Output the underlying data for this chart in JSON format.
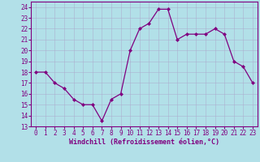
{
  "x": [
    0,
    1,
    2,
    3,
    4,
    5,
    6,
    7,
    8,
    9,
    10,
    11,
    12,
    13,
    14,
    15,
    16,
    17,
    18,
    19,
    20,
    21,
    22,
    23
  ],
  "y": [
    18,
    18,
    17,
    16.5,
    15.5,
    15,
    15,
    13.5,
    15.5,
    16,
    20,
    22,
    22.5,
    23.8,
    23.8,
    21,
    21.5,
    21.5,
    21.5,
    22,
    21.5,
    19,
    18.5,
    17
  ],
  "line_color": "#800080",
  "marker": "D",
  "marker_size": 2,
  "bg_color": "#b2e0e8",
  "grid_color": "#aaaacc",
  "xlabel": "Windchill (Refroidissement éolien,°C)",
  "xlabel_color": "#800080",
  "tick_color": "#800080",
  "spine_color": "#800080",
  "ylim": [
    13,
    24.5
  ],
  "yticks": [
    13,
    14,
    15,
    16,
    17,
    18,
    19,
    20,
    21,
    22,
    23,
    24
  ],
  "xlim": [
    -0.5,
    23.5
  ],
  "xticks": [
    0,
    1,
    2,
    3,
    4,
    5,
    6,
    7,
    8,
    9,
    10,
    11,
    12,
    13,
    14,
    15,
    16,
    17,
    18,
    19,
    20,
    21,
    22,
    23
  ]
}
